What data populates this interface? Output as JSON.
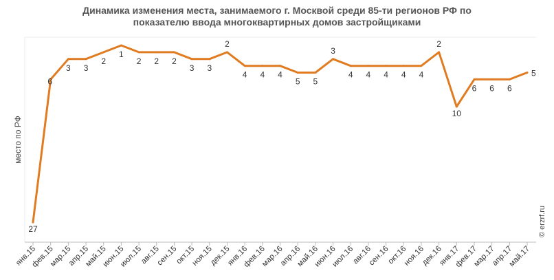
{
  "chart_data": {
    "type": "line",
    "title_lines": [
      "Динамика изменения места, занимаемого г. Москвой среди 85-ти регионов РФ по",
      "показателю ввода многоквартирных домов застройщиками"
    ],
    "ylabel": "место по РФ",
    "xlabel": "",
    "y_inverted": true,
    "ylim": [
      1,
      29
    ],
    "grid": false,
    "line_color": "#E07B21",
    "categories": [
      "янв.15",
      "фев.15",
      "мар.15",
      "апр.15",
      "май.15",
      "июн.15",
      "июл.15",
      "авг.15",
      "сен.15",
      "окт.15",
      "ноя.15",
      "дек.15",
      "янв.16",
      "фев.16",
      "мар.16",
      "апр.16",
      "май.16",
      "июн.16",
      "июл.16",
      "авг.16",
      "сен.16",
      "окт.16",
      "ноя.16",
      "дек.16",
      "янв.17",
      "фев.17",
      "мар.17",
      "апр.17",
      "май.17"
    ],
    "values": [
      27,
      6,
      3,
      3,
      2,
      1,
      2,
      2,
      2,
      3,
      3,
      2,
      4,
      4,
      4,
      5,
      5,
      3,
      4,
      4,
      4,
      4,
      4,
      2,
      10,
      6,
      6,
      6,
      5
    ],
    "data_label_positions": [
      "below",
      "left",
      "below",
      "below",
      "below",
      "below",
      "below",
      "below",
      "below",
      "below",
      "below",
      "above",
      "below",
      "below",
      "below",
      "below",
      "below",
      "above",
      "below",
      "below",
      "below",
      "below",
      "below",
      "above",
      "below",
      "below",
      "below",
      "below",
      "right"
    ]
  },
  "watermark": "© erzrf.ru"
}
